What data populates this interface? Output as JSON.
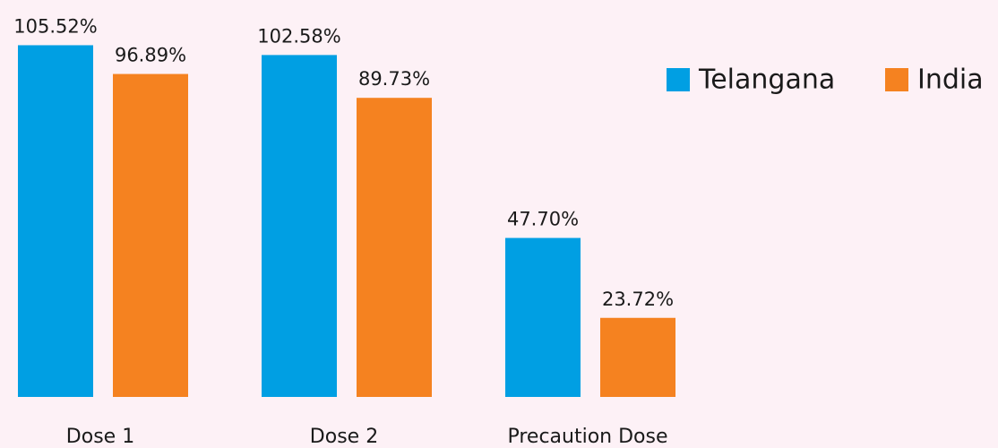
{
  "chart_data": {
    "type": "bar",
    "categories": [
      "Dose 1",
      "Dose 2",
      "Precaution Dose"
    ],
    "series": [
      {
        "name": "Telangana",
        "color": "#009fe3",
        "values": [
          105.52,
          102.58,
          47.7
        ],
        "value_labels": [
          "105.52%",
          "102.58%",
          "47.70%"
        ]
      },
      {
        "name": "India",
        "color": "#f58220",
        "values": [
          96.89,
          89.73,
          23.72
        ],
        "value_labels": [
          "96.89%",
          "89.73%",
          "23.72%"
        ]
      }
    ],
    "legend": "top-right"
  }
}
